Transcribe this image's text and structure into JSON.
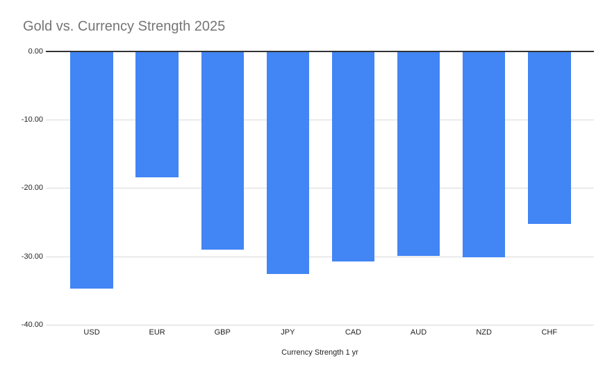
{
  "chart": {
    "title": "Gold vs. Currency Strength 2025",
    "x_axis_title": "Currency Strength 1 yr"
  },
  "chart_data": {
    "type": "bar",
    "title": "Gold vs. Currency Strength 2025",
    "categories": [
      "USD",
      "EUR",
      "GBP",
      "JPY",
      "CAD",
      "AUD",
      "NZD",
      "CHF"
    ],
    "values": [
      -34.7,
      -18.4,
      -29.0,
      -32.6,
      -30.8,
      -29.9,
      -30.1,
      -25.3
    ],
    "xlabel": "Currency Strength 1 yr",
    "ylabel": "",
    "ylim": [
      -40,
      0
    ],
    "yticks": [
      0,
      -10,
      -20,
      -30,
      -40
    ],
    "ytick_labels": [
      "0.00",
      "-10.00",
      "-20.00",
      "-30.00",
      "-40.00"
    ],
    "grid": true,
    "legend": "none",
    "colors": {
      "bar": "#4285f4",
      "title_text": "#757575",
      "axis_text": "#222222",
      "gridline": "#d9d9d9",
      "zero_line": "#333333",
      "background": "#ffffff"
    }
  }
}
